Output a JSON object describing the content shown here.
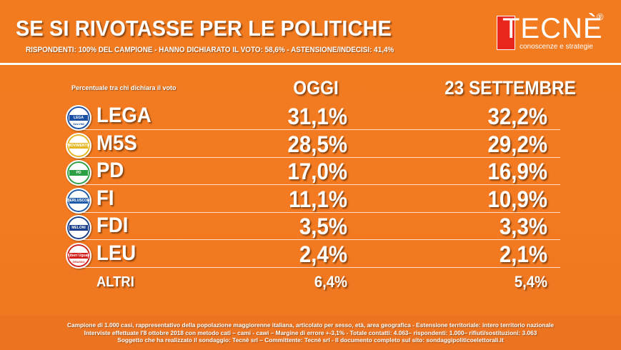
{
  "header": {
    "title": "SE SI RIVOTASSE PER LE POLITICHE",
    "subtitle": "RISPONDENTI: 100% DEL CAMPIONE - HANNO DICHIARATO IL VOTO: 58,6% - ASTENSIONE/INDECISI: 41,4%"
  },
  "logo": {
    "name": "TECNÈ",
    "registered": "®",
    "tagline": "conoscenze e strategie"
  },
  "table": {
    "note": "Percentuale tra chi dichiara il voto",
    "col_today": "OGGI",
    "col_prev": "23 SETTEMBRE"
  },
  "chart_data": {
    "type": "table",
    "title": "SE SI RIVOTASSE PER LE POLITICHE",
    "columns": [
      "OGGI",
      "23 SETTEMBRE"
    ],
    "rows": [
      {
        "party": "LEGA",
        "logo_text": "LEGA",
        "logo_sub": "SALVINI",
        "today": "31,1%",
        "prev": "32,2%",
        "logo_color": "#1b4fa3"
      },
      {
        "party": "M5S",
        "logo_text": "MOVIMENTO",
        "logo_sub": "",
        "today": "28,5%",
        "prev": "29,2%",
        "logo_color": "#e3b622"
      },
      {
        "party": "PD",
        "logo_text": "PD",
        "logo_sub": "",
        "today": "17,0%",
        "prev": "16,9%",
        "logo_color": "#2c9f45"
      },
      {
        "party": "FI",
        "logo_text": "BERLUSCONI",
        "logo_sub": "",
        "today": "11,1%",
        "prev": "10,9%",
        "logo_color": "#1e5aa8"
      },
      {
        "party": "FDI",
        "logo_text": "MELONI",
        "logo_sub": "",
        "today": "3,5%",
        "prev": "3,3%",
        "logo_color": "#1c3f8a"
      },
      {
        "party": "LEU",
        "logo_text": "Liberi Uguali",
        "logo_sub": "GRASSO",
        "today": "2,4%",
        "prev": "2,1%",
        "logo_color": "#d1201c"
      },
      {
        "party": "ALTRI",
        "logo_text": "",
        "logo_sub": "",
        "today": "6,4%",
        "prev": "5,4%",
        "logo_color": ""
      }
    ]
  },
  "footer": {
    "line1": "Campione di 1.000 casi, rappresentativo della popolazione maggiorenne italiana, articolato per sesso, età, area geografica - Estensione territoriale: intero territorio nazionale",
    "line2": "Interviste effettuate l'8 ottobre 2018 con metodo cati – cami - cawi – Margine di errore +-3,1% - Totale contatti: 4.063– rispondenti: 1.000– rifiuti/sostituzioni: 3.063",
    "line3": "Soggetto che ha realizzato il sondaggio: Tecnè srl – Committente: Tecnè srl - Il documento completo sul sito: sondaggipoliticoelettorali.it"
  },
  "colors": {
    "background": "#f07822",
    "text": "#ffffff",
    "brand_red": "#e8261c"
  }
}
